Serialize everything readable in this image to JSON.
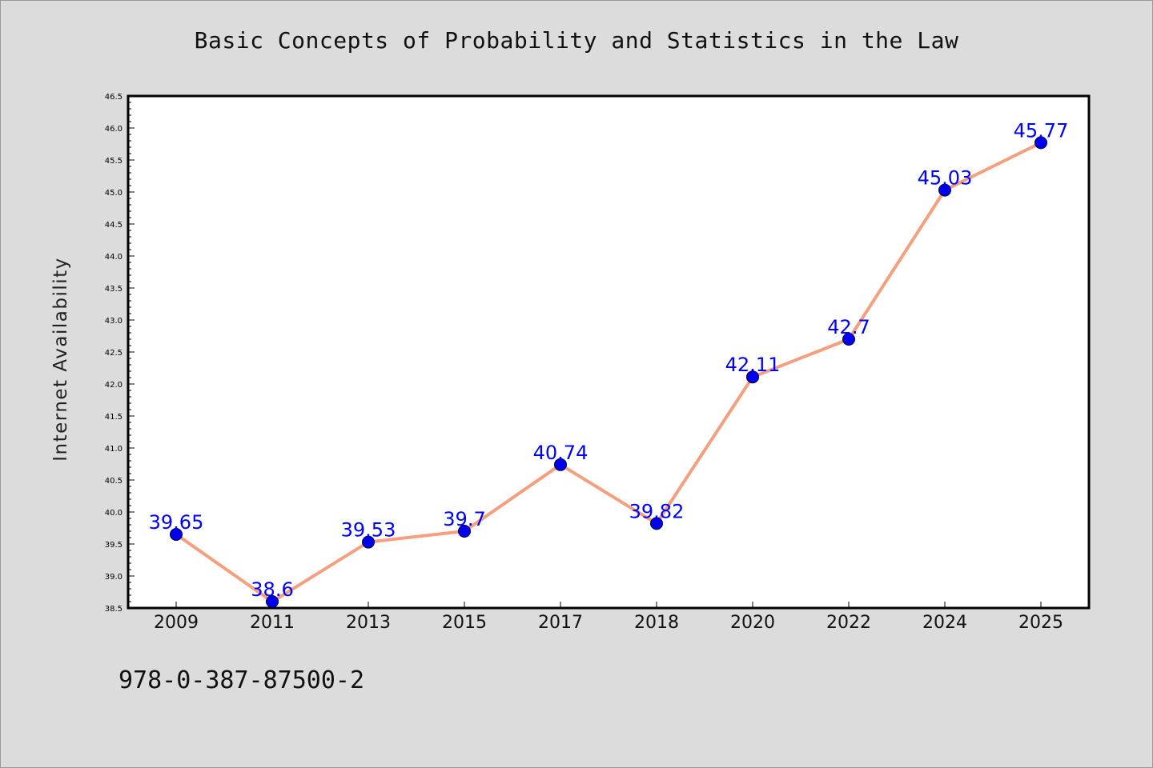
{
  "chart_data": {
    "type": "line",
    "title": "Basic Concepts of Probability and Statistics in the Law",
    "xlabel": "",
    "ylabel": "Internet Availability",
    "categories": [
      "2009",
      "2011",
      "2013",
      "2015",
      "2017",
      "2018",
      "2020",
      "2022",
      "2024",
      "2025"
    ],
    "series": [
      {
        "values": [
          39.65,
          38.6,
          39.53,
          39.7,
          40.74,
          39.82,
          42.11,
          42.7,
          45.03,
          45.77
        ],
        "data_labels": [
          "39.65",
          "38.6",
          "39.53",
          "39.7",
          "40.74",
          "39.82",
          "42.11",
          "42.7",
          "45.03",
          "45.77"
        ]
      }
    ],
    "ylim": [
      38.5,
      46.5
    ],
    "yticks": [
      "38.5",
      "39.0",
      "39.5",
      "40.0",
      "40.5",
      "41.0",
      "41.5",
      "42.0",
      "42.5",
      "43.0",
      "43.5",
      "44.0",
      "44.5",
      "45.0",
      "45.5",
      "46.0",
      "46.5"
    ],
    "grid": false,
    "legend": "none",
    "colors": {
      "line": "#f4a07f",
      "marker": "#0000ee",
      "data_label": "#0000ff",
      "plot_background": "#ffffff",
      "page_background": "#dcdcdc"
    }
  },
  "footnote": "978-0-387-87500-2"
}
